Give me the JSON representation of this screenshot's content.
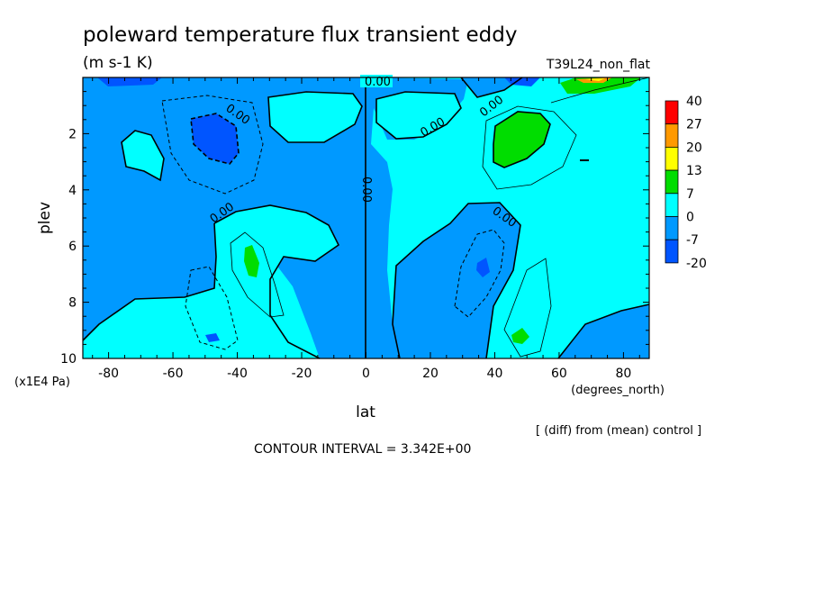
{
  "chart_data": {
    "type": "heatmap",
    "title": "poleward temperature flux transient eddy",
    "units": "(m s-1 K)",
    "run_label": "T39L24_non_flat",
    "xlabel": "lat",
    "xunit": "(degrees_north)",
    "ylabel": "plev",
    "yunit": "(x1E4 Pa)",
    "xlim": [
      -88,
      88
    ],
    "ylim": [
      10,
      0
    ],
    "x_ticks": [
      -80,
      -60,
      -40,
      -20,
      0,
      20,
      40,
      60,
      80
    ],
    "x_tick_labels": [
      "-80",
      "-60",
      "-40",
      "-20",
      "0",
      "20",
      "40",
      "60",
      "80"
    ],
    "y_ticks": [
      2,
      4,
      6,
      8,
      10
    ],
    "y_tick_labels": [
      "2",
      "4",
      "6",
      "8",
      "10"
    ],
    "contour_labels": [
      "0.00",
      "0.00",
      "0.00",
      "0.00",
      "0.00",
      "0.00",
      "0.00"
    ],
    "colorbar": {
      "levels": [
        "40",
        "27",
        "20",
        "13",
        "7",
        "0",
        "-7",
        "-20"
      ],
      "colors": [
        "#ff0000",
        "#ff9900",
        "#ffff00",
        "#00dd00",
        "#00ffff",
        "#0099ff",
        "#0055ff"
      ]
    },
    "diff_note": "[ (diff) from (mean) control ]",
    "contour_interval": "CONTOUR INTERVAL = 3.342E+00",
    "fill_colors": {
      "light": "#00ffff",
      "mid": "#0099ff",
      "dark": "#0055ff",
      "green": "#00dd00",
      "orange": "#ff9900",
      "yellow": "#ffff00"
    }
  }
}
